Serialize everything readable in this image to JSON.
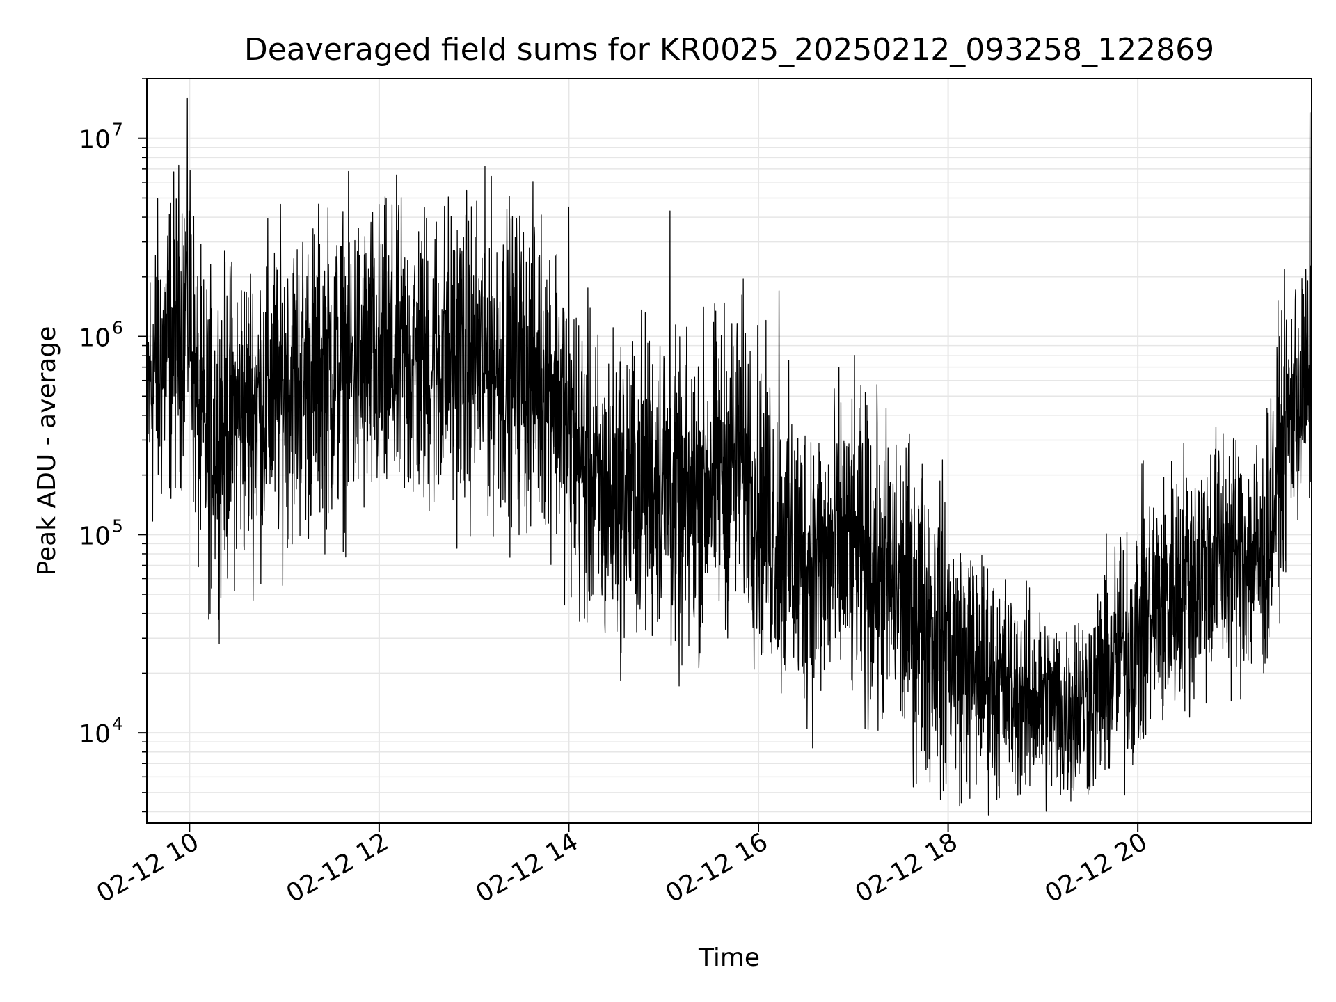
{
  "chart_data": {
    "type": "line",
    "title": "Deaveraged field sums for KR0025_20250212_093258_122869",
    "xlabel": "Time",
    "ylabel": "Peak ADU - average",
    "yscale": "log",
    "grid": true,
    "line_color": "#000000",
    "grid_color": "#e6e6e6",
    "xlim": [
      "2025-02-12 09:33",
      "2025-02-12 21:50"
    ],
    "ylim": [
      3500,
      20000000
    ],
    "x_ticks": [
      {
        "value": "2025-02-12 10:00",
        "label": "02-12 10"
      },
      {
        "value": "2025-02-12 12:00",
        "label": "02-12 12"
      },
      {
        "value": "2025-02-12 14:00",
        "label": "02-12 14"
      },
      {
        "value": "2025-02-12 16:00",
        "label": "02-12 16"
      },
      {
        "value": "2025-02-12 18:00",
        "label": "02-12 18"
      },
      {
        "value": "2025-02-12 20:00",
        "label": "02-12 20"
      }
    ],
    "y_ticks": [
      {
        "value": 10000,
        "base": "10",
        "exp": "4"
      },
      {
        "value": 100000,
        "base": "10",
        "exp": "5"
      },
      {
        "value": 1000000,
        "base": "10",
        "exp": "6"
      },
      {
        "value": 10000000,
        "base": "10",
        "exp": "7"
      }
    ],
    "series": [
      {
        "x": [
          "2025-02-12 09:33",
          "2025-02-12 09:40",
          "2025-02-12 09:50",
          "2025-02-12 10:00",
          "2025-02-12 10:05",
          "2025-02-12 10:10",
          "2025-02-12 10:20",
          "2025-02-12 10:40",
          "2025-02-12 11:00",
          "2025-02-12 11:20",
          "2025-02-12 11:40",
          "2025-02-12 12:00",
          "2025-02-12 12:30",
          "2025-02-12 13:00",
          "2025-02-12 13:30",
          "2025-02-12 13:50",
          "2025-02-12 14:05",
          "2025-02-12 14:20",
          "2025-02-12 14:40",
          "2025-02-12 15:00",
          "2025-02-12 15:10",
          "2025-02-12 15:30",
          "2025-02-12 15:50",
          "2025-02-12 16:00",
          "2025-02-12 16:20",
          "2025-02-12 16:40",
          "2025-02-12 16:55",
          "2025-02-12 17:10",
          "2025-02-12 17:30",
          "2025-02-12 17:50",
          "2025-02-12 18:10",
          "2025-02-12 18:30",
          "2025-02-12 18:50",
          "2025-02-12 19:10",
          "2025-02-12 19:30",
          "2025-02-12 19:50",
          "2025-02-12 20:10",
          "2025-02-12 20:30",
          "2025-02-12 20:50",
          "2025-02-12 21:10",
          "2025-02-12 21:20",
          "2025-02-12 21:30",
          "2025-02-12 21:40",
          "2025-02-12 21:50"
        ],
        "y": [
          500000,
          700000,
          1000000,
          1600000,
          400000,
          300000,
          350000,
          450000,
          550000,
          650000,
          700000,
          700000,
          750000,
          800000,
          700000,
          650000,
          250000,
          150000,
          180000,
          200000,
          120000,
          200000,
          250000,
          150000,
          80000,
          70000,
          90000,
          70000,
          50000,
          35000,
          22000,
          18000,
          15000,
          13000,
          15000,
          25000,
          40000,
          60000,
          80000,
          80000,
          70000,
          250000,
          500000,
          600000
        ],
        "spread": [
          3,
          3,
          3,
          3,
          3,
          3,
          3,
          3,
          3,
          3,
          3,
          3,
          3,
          3,
          3,
          3,
          3,
          3,
          3,
          3,
          3,
          3,
          3,
          3,
          3,
          3,
          3,
          3,
          3,
          3,
          2.5,
          2.2,
          2,
          2,
          2,
          2.5,
          2.5,
          2.5,
          2.5,
          2.5,
          2.5,
          2.5,
          2.5,
          2.5
        ],
        "spikes": [
          {
            "x": "2025-02-12 10:13",
            "y": 8800000
          },
          {
            "x": "2025-02-12 10:13",
            "y": 40000
          },
          {
            "x": "2025-02-12 21:49",
            "y": 13500000
          },
          {
            "x": "2025-02-12 14:00",
            "y": 4500000
          },
          {
            "x": "2025-02-12 15:04",
            "y": 4300000
          },
          {
            "x": "2025-02-12 16:13",
            "y": 1700000
          },
          {
            "x": "2025-02-12 18:49",
            "y": 5500
          },
          {
            "x": "2025-02-12 19:13",
            "y": 5200
          }
        ]
      }
    ]
  }
}
